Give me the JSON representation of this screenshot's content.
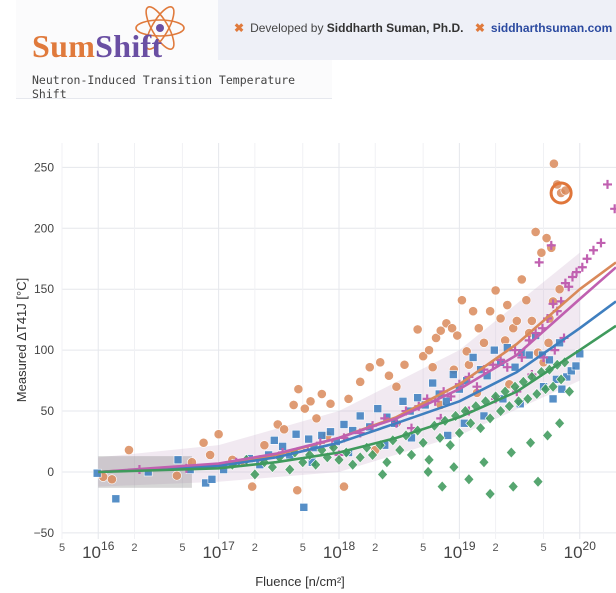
{
  "header": {
    "logo_sum": "Sum",
    "logo_shift": "Shift",
    "subtitle": "Neutron-Induced Transition Temperature Shift",
    "credit_prefix": "Developed by",
    "credit_name": "Siddharth Suman, Ph.D.",
    "credit_site": "siddharthsuman.com",
    "colors": {
      "sum": "#e07a3c",
      "shift": "#6a4fa3",
      "credit_bar": "#eef0f7"
    }
  },
  "chart_data": {
    "type": "scatter",
    "xscale": "log",
    "xlim": [
      5000000000000000.0,
      2e+20
    ],
    "ylim": [
      -55,
      270
    ],
    "xlabel": "Fluence  [n/cm²]",
    "ylabel": "Measured ΔT41J  [°C]",
    "yticks": [
      -50,
      0,
      50,
      100,
      150,
      200,
      250
    ],
    "xticks_major": [
      {
        "x": 1e+16,
        "base": "10",
        "exp": "16"
      },
      {
        "x": 1e+17,
        "base": "10",
        "exp": "17"
      },
      {
        "x": 1e+18,
        "base": "10",
        "exp": "18"
      },
      {
        "x": 1e+19,
        "base": "10",
        "exp": "19"
      },
      {
        "x": 1e+20,
        "base": "10",
        "exp": "20"
      }
    ],
    "xticks_minor": [
      {
        "x": 5000000000000000.0,
        "label": "5"
      },
      {
        "x": 2e+16,
        "label": "2"
      },
      {
        "x": 5e+16,
        "label": "5"
      },
      {
        "x": 2e+17,
        "label": "2"
      },
      {
        "x": 5e+17,
        "label": "5"
      },
      {
        "x": 2e+18,
        "label": "2"
      },
      {
        "x": 5e+18,
        "label": "5"
      },
      {
        "x": 2e+19,
        "label": "2"
      },
      {
        "x": 5e+19,
        "label": "5"
      }
    ],
    "grid": true,
    "series": [
      {
        "marker": "circle",
        "color": "#d9895a",
        "trend": [
          [
            1e+16,
            0
          ],
          [
            1e+17,
            6
          ],
          [
            3e+17,
            14
          ],
          [
            1e+18,
            28
          ],
          [
            3e+18,
            45
          ],
          [
            1e+19,
            72
          ],
          [
            3e+19,
            105
          ],
          [
            1e+20,
            150
          ],
          [
            2e+20,
            172
          ]
        ]
      },
      {
        "marker": "square",
        "color": "#3f7fbf",
        "trend": [
          [
            1e+16,
            0
          ],
          [
            1e+17,
            5
          ],
          [
            3e+17,
            12
          ],
          [
            1e+18,
            24
          ],
          [
            3e+18,
            40
          ],
          [
            1e+19,
            58
          ],
          [
            3e+19,
            82
          ],
          [
            1e+20,
            118
          ],
          [
            2e+20,
            140
          ]
        ]
      },
      {
        "marker": "plus",
        "color": "#c060b0",
        "trend": [
          [
            1e+16,
            0
          ],
          [
            1e+17,
            7
          ],
          [
            3e+17,
            15
          ],
          [
            1e+18,
            28
          ],
          [
            3e+18,
            44
          ],
          [
            1e+19,
            68
          ],
          [
            3e+19,
            96
          ],
          [
            1e+20,
            142
          ],
          [
            2e+20,
            168
          ]
        ]
      },
      {
        "marker": "diamond",
        "color": "#3f9a5c",
        "trend": [
          [
            1e+16,
            0
          ],
          [
            1e+17,
            3
          ],
          [
            3e+17,
            8
          ],
          [
            1e+18,
            16
          ],
          [
            3e+18,
            28
          ],
          [
            1e+19,
            45
          ],
          [
            3e+19,
            66
          ],
          [
            1e+20,
            100
          ],
          [
            2e+20,
            120
          ]
        ]
      }
    ],
    "trend_band": [
      [
        1e+16,
        -12,
        12
      ],
      [
        1e+17,
        -8,
        22
      ],
      [
        1e+18,
        0,
        50
      ],
      [
        1e+19,
        30,
        100
      ],
      [
        1e+20,
        75,
        180
      ]
    ],
    "highlight": {
      "x": 7e+19,
      "y": 229,
      "color": "#e0763a"
    },
    "points_circle": [
      [
        1.1e+16,
        -4
      ],
      [
        1.8e+16,
        18
      ],
      [
        1.3e+16,
        -6
      ],
      [
        4.5e+16,
        -3
      ],
      [
        6e+16,
        8
      ],
      [
        7.5e+16,
        24
      ],
      [
        8.5e+16,
        14
      ],
      [
        1e+17,
        31
      ],
      [
        1.3e+17,
        10
      ],
      [
        1.6e+17,
        8
      ],
      [
        1.9e+17,
        -12
      ],
      [
        2.4e+17,
        22
      ],
      [
        3.1e+17,
        39
      ],
      [
        3.5e+17,
        35
      ],
      [
        4.2e+17,
        55
      ],
      [
        4.6e+17,
        68
      ],
      [
        5.2e+17,
        52
      ],
      [
        5.8e+17,
        58
      ],
      [
        6.5e+17,
        44
      ],
      [
        7.2e+17,
        64
      ],
      [
        8.5e+17,
        56
      ],
      [
        1.2e+18,
        60
      ],
      [
        1.5e+18,
        74
      ],
      [
        1.8e+18,
        86
      ],
      [
        2.2e+18,
        90
      ],
      [
        2.6e+18,
        79
      ],
      [
        3e+18,
        70
      ],
      [
        3.5e+18,
        88
      ],
      [
        4.5e+18,
        117
      ],
      [
        5e+18,
        95
      ],
      [
        5.6e+18,
        100
      ],
      [
        6.4e+18,
        110
      ],
      [
        7e+18,
        116
      ],
      [
        7.8e+18,
        122
      ],
      [
        8.7e+18,
        118
      ],
      [
        9.6e+18,
        112
      ],
      [
        1.05e+19,
        141
      ],
      [
        1.15e+19,
        99
      ],
      [
        1.3e+19,
        132
      ],
      [
        1.45e+19,
        118
      ],
      [
        1.6e+19,
        106
      ],
      [
        1.8e+19,
        132
      ],
      [
        2e+19,
        149
      ],
      [
        2.2e+19,
        126
      ],
      [
        2.5e+19,
        137
      ],
      [
        2.8e+19,
        118
      ],
      [
        3e+19,
        124
      ],
      [
        3.3e+19,
        158
      ],
      [
        3.6e+19,
        141
      ],
      [
        4e+19,
        124
      ],
      [
        4.3e+19,
        197
      ],
      [
        4.8e+19,
        180
      ],
      [
        5.3e+19,
        192
      ],
      [
        5.8e+19,
        184
      ],
      [
        6.1e+19,
        253
      ],
      [
        6.5e+19,
        236
      ],
      [
        7e+19,
        229
      ],
      [
        7.6e+19,
        231
      ],
      [
        6e+18,
        86
      ],
      [
        1.2e+19,
        88
      ],
      [
        2.4e+19,
        108
      ],
      [
        3.8e+19,
        114
      ],
      [
        4.5e+19,
        98
      ],
      [
        5.5e+19,
        106
      ],
      [
        9e+18,
        84
      ],
      [
        3e+18,
        40
      ],
      [
        7e+18,
        55
      ],
      [
        1.4e+19,
        65
      ],
      [
        2.6e+19,
        72
      ],
      [
        5e+19,
        90
      ],
      [
        1.1e+18,
        -12
      ],
      [
        4.5e+17,
        -15
      ],
      [
        2e+18,
        18
      ],
      [
        8e+17,
        30
      ],
      [
        6e+19,
        140
      ],
      [
        6.8e+19,
        150
      ],
      [
        5.6e+19,
        126
      ]
    ],
    "points_square": [
      [
        9800000000000000.0,
        -1
      ],
      [
        1.4e+16,
        -22
      ],
      [
        2.6e+16,
        0
      ],
      [
        4.6e+16,
        10
      ],
      [
        5.8e+16,
        2
      ],
      [
        7.8e+16,
        -9
      ],
      [
        8.8e+16,
        -6
      ],
      [
        1.1e+17,
        2
      ],
      [
        1.4e+17,
        7
      ],
      [
        1.8e+17,
        11
      ],
      [
        2.2e+17,
        6
      ],
      [
        2.6e+17,
        14
      ],
      [
        2.9e+17,
        26
      ],
      [
        3.4e+17,
        21
      ],
      [
        3.9e+17,
        14
      ],
      [
        4.4e+17,
        31
      ],
      [
        5.1e+17,
        -29
      ],
      [
        5.6e+17,
        27
      ],
      [
        6.2e+17,
        20
      ],
      [
        7.2e+17,
        30
      ],
      [
        8.5e+17,
        33
      ],
      [
        9.5e+17,
        25
      ],
      [
        1.1e+18,
        39
      ],
      [
        1.3e+18,
        34
      ],
      [
        1.5e+18,
        46
      ],
      [
        1.8e+18,
        37
      ],
      [
        2.1e+18,
        52
      ],
      [
        2.5e+18,
        45
      ],
      [
        2.9e+18,
        40
      ],
      [
        3.4e+18,
        58
      ],
      [
        3.9e+18,
        50
      ],
      [
        4.5e+18,
        61
      ],
      [
        5.2e+18,
        55
      ],
      [
        6e+18,
        73
      ],
      [
        6.8e+18,
        64
      ],
      [
        7.8e+18,
        58
      ],
      [
        8.9e+18,
        80
      ],
      [
        1e+19,
        68
      ],
      [
        1.15e+19,
        75
      ],
      [
        1.3e+19,
        94
      ],
      [
        1.5e+19,
        84
      ],
      [
        1.7e+19,
        79
      ],
      [
        1.95e+19,
        100
      ],
      [
        2.2e+19,
        90
      ],
      [
        2.5e+19,
        102
      ],
      [
        2.9e+19,
        86
      ],
      [
        3.3e+19,
        98
      ],
      [
        3.8e+19,
        96
      ],
      [
        4.3e+19,
        112
      ],
      [
        4.9e+19,
        96
      ],
      [
        5.6e+19,
        92
      ],
      [
        6.4e+19,
        76
      ],
      [
        7.1e+19,
        68
      ],
      [
        7.8e+19,
        78
      ],
      [
        8.5e+19,
        83
      ],
      [
        9.3e+19,
        87
      ],
      [
        1e+20,
        97
      ],
      [
        6.8e+19,
        106
      ],
      [
        4e+18,
        28
      ],
      [
        8e+18,
        30
      ],
      [
        1.6e+19,
        46
      ],
      [
        3.2e+19,
        56
      ],
      [
        6e+19,
        60
      ],
      [
        2.4e+18,
        22
      ],
      [
        1.2e+18,
        16
      ],
      [
        6e+17,
        8
      ],
      [
        1.1e+19,
        40
      ],
      [
        2.3e+19,
        60
      ],
      [
        5e+19,
        70
      ]
    ],
    "points_plus": [
      [
        2.2e+16,
        2
      ],
      [
        5.4e+16,
        3
      ],
      [
        1.4e+17,
        8
      ],
      [
        2.2e+17,
        10
      ],
      [
        3.4e+17,
        16
      ],
      [
        5.5e+17,
        18
      ],
      [
        7e+17,
        24
      ],
      [
        8.8e+17,
        22
      ],
      [
        1.1e+18,
        28
      ],
      [
        1.5e+18,
        32
      ],
      [
        1.9e+18,
        38
      ],
      [
        2.4e+18,
        44
      ],
      [
        3e+18,
        40
      ],
      [
        3.6e+18,
        50
      ],
      [
        4.6e+18,
        54
      ],
      [
        5.4e+18,
        60
      ],
      [
        6.3e+18,
        58
      ],
      [
        7.4e+18,
        66
      ],
      [
        8.5e+18,
        62
      ],
      [
        1e+19,
        72
      ],
      [
        1.2e+19,
        78
      ],
      [
        1.4e+19,
        70
      ],
      [
        1.6e+19,
        84
      ],
      [
        1.9e+19,
        88
      ],
      [
        2.2e+19,
        92
      ],
      [
        2.5e+19,
        86
      ],
      [
        2.9e+19,
        100
      ],
      [
        3.3e+19,
        94
      ],
      [
        3.8e+19,
        108
      ],
      [
        4.3e+19,
        114
      ],
      [
        4.9e+19,
        118
      ],
      [
        5.4e+19,
        126
      ],
      [
        6e+19,
        138
      ],
      [
        6.5e+19,
        132
      ],
      [
        7e+19,
        140
      ],
      [
        7.6e+19,
        155
      ],
      [
        8.1e+19,
        152
      ],
      [
        8.7e+19,
        160
      ],
      [
        9.4e+19,
        164
      ],
      [
        1.05e+20,
        168
      ],
      [
        1.15e+20,
        175
      ],
      [
        1.3e+20,
        182
      ],
      [
        1.5e+20,
        188
      ],
      [
        1.7e+20,
        236
      ],
      [
        1.95e+20,
        216
      ],
      [
        5.8e+19,
        186
      ],
      [
        4.6e+19,
        172
      ],
      [
        2e+19,
        60
      ],
      [
        3e+19,
        66
      ],
      [
        4e+19,
        80
      ],
      [
        5e+19,
        94
      ],
      [
        6.2e+19,
        100
      ],
      [
        7.4e+19,
        110
      ],
      [
        1.2e+19,
        50
      ],
      [
        7e+18,
        44
      ],
      [
        4e+18,
        36
      ],
      [
        1e+18,
        14
      ]
    ],
    "points_diamond": [
      [
        1.3e+17,
        6
      ],
      [
        1.7e+17,
        10
      ],
      [
        2e+17,
        -2
      ],
      [
        2.4e+17,
        8
      ],
      [
        2.8e+17,
        4
      ],
      [
        3.2e+17,
        12
      ],
      [
        3.9e+17,
        2
      ],
      [
        4.3e+17,
        16
      ],
      [
        5e+17,
        8
      ],
      [
        5.7e+17,
        14
      ],
      [
        6.4e+17,
        6
      ],
      [
        7.2e+17,
        18
      ],
      [
        8e+17,
        12
      ],
      [
        9e+17,
        20
      ],
      [
        1e+18,
        10
      ],
      [
        1.15e+18,
        16
      ],
      [
        1.3e+18,
        6
      ],
      [
        1.5e+18,
        12
      ],
      [
        1.7e+18,
        20
      ],
      [
        1.9e+18,
        14
      ],
      [
        2.2e+18,
        22
      ],
      [
        2.5e+18,
        8
      ],
      [
        2.8e+18,
        26
      ],
      [
        3.2e+18,
        18
      ],
      [
        3.6e+18,
        30
      ],
      [
        4e+18,
        14
      ],
      [
        4.5e+18,
        34
      ],
      [
        5e+18,
        24
      ],
      [
        5.6e+18,
        10
      ],
      [
        6.2e+18,
        38
      ],
      [
        6.9e+18,
        28
      ],
      [
        7.6e+18,
        42
      ],
      [
        8.4e+18,
        22
      ],
      [
        9.3e+18,
        46
      ],
      [
        1e+19,
        32
      ],
      [
        1.12e+19,
        50
      ],
      [
        1.24e+19,
        40
      ],
      [
        1.37e+19,
        54
      ],
      [
        1.5e+19,
        36
      ],
      [
        1.65e+19,
        58
      ],
      [
        1.8e+19,
        44
      ],
      [
        2e+19,
        62
      ],
      [
        2.2e+19,
        50
      ],
      [
        2.4e+19,
        66
      ],
      [
        2.6e+19,
        54
      ],
      [
        2.9e+19,
        70
      ],
      [
        3.1e+19,
        58
      ],
      [
        3.4e+19,
        74
      ],
      [
        3.7e+19,
        60
      ],
      [
        4e+19,
        78
      ],
      [
        4.4e+19,
        64
      ],
      [
        4.8e+19,
        82
      ],
      [
        5.2e+19,
        68
      ],
      [
        5.6e+19,
        84
      ],
      [
        6e+19,
        70
      ],
      [
        6.5e+19,
        88
      ],
      [
        7e+19,
        76
      ],
      [
        7.5e+19,
        90
      ],
      [
        8.2e+19,
        66
      ],
      [
        1.8e+19,
        -18
      ],
      [
        2.8e+19,
        -12
      ],
      [
        4.5e+19,
        -8
      ],
      [
        7.2e+18,
        -12
      ],
      [
        1.2e+19,
        -6
      ],
      [
        2.3e+18,
        -2
      ],
      [
        5.5e+18,
        0
      ],
      [
        9e+18,
        4
      ],
      [
        1.6e+19,
        8
      ],
      [
        2.7e+19,
        16
      ],
      [
        3.9e+19,
        24
      ],
      [
        5.4e+19,
        30
      ],
      [
        6.8e+19,
        40
      ]
    ]
  }
}
